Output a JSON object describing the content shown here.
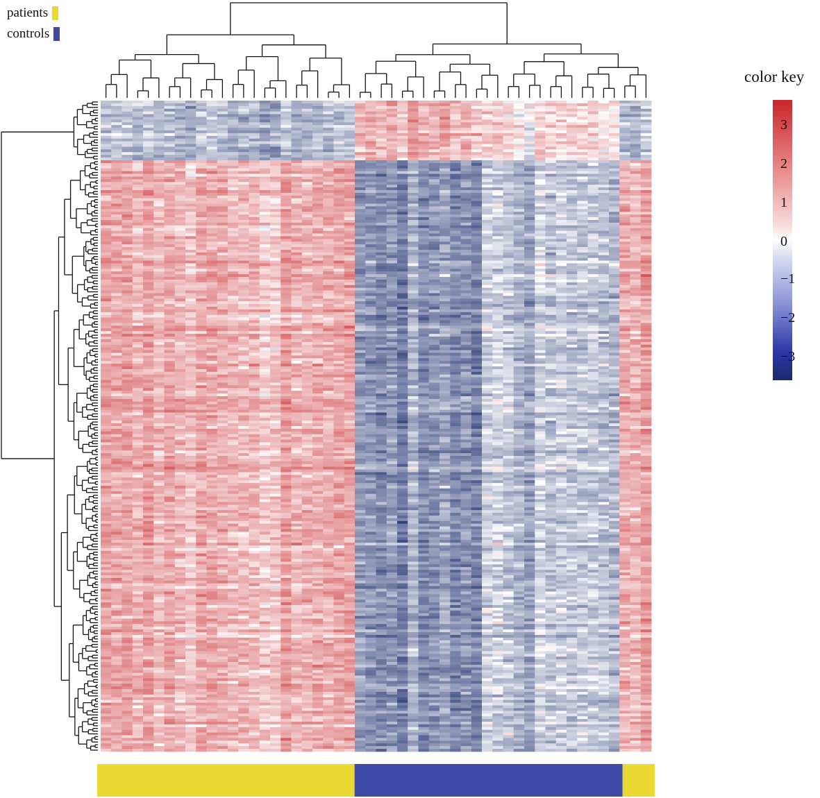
{
  "legend": {
    "patients": {
      "label": "patients",
      "color": "#ead833"
    },
    "controls": {
      "label": "controls",
      "color": "#3d4aa6"
    }
  },
  "color_key": {
    "title": "color key",
    "ticks": [
      "3",
      "2",
      "1",
      "0",
      "−1",
      "−2",
      "−3"
    ],
    "range": [
      -3.6,
      3.6
    ],
    "low_color": "#1a2b6a",
    "mid_color": "#ffffff",
    "high_color": "#c8262b"
  },
  "chart_data": {
    "type": "heatmap",
    "title": "",
    "n_columns": 52,
    "n_rows": 240,
    "value_range": [
      -3.6,
      3.6
    ],
    "column_groups": [
      {
        "group": "patients",
        "count": 24
      },
      {
        "group": "controls",
        "count": 25
      },
      {
        "group": "patients",
        "count": 3
      }
    ],
    "row_clusters": [
      {
        "name": "top block",
        "row_count": 22,
        "patients_mean": -1.0,
        "controls_mean": 1.0
      },
      {
        "name": "main block",
        "row_count": 218,
        "patients_mean": 1.1,
        "controls_mean": -1.6
      }
    ],
    "has_row_dendrogram": true,
    "has_column_dendrogram": true,
    "legend_placement": "top-left"
  }
}
